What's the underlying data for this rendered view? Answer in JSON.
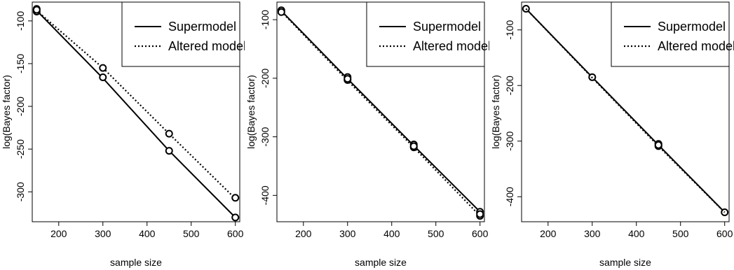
{
  "chart_data": [
    {
      "type": "line",
      "xlabel": "sample size",
      "ylabel": "log(Bayes factor)",
      "xlim": [
        140,
        610
      ],
      "ylim": [
        -335,
        -78
      ],
      "xticks": [
        200,
        300,
        400,
        500,
        600
      ],
      "yticks": [
        -100,
        -150,
        -200,
        -250,
        -300
      ],
      "grid": false,
      "legend_position": "top-right",
      "series": [
        {
          "name": "Supermodel",
          "line_style": "solid",
          "x": [
            150,
            300,
            450,
            600
          ],
          "values": [
            -88,
            -167,
            -252,
            -330
          ],
          "points": [
            [
              150,
              -86
            ],
            [
              150,
              -89
            ],
            [
              300,
              -166
            ],
            [
              450,
              -252
            ],
            [
              600,
              -330
            ]
          ]
        },
        {
          "name": "Altered model",
          "line_style": "dotted",
          "x": [
            150,
            300,
            450,
            600
          ],
          "values": [
            -88,
            -155,
            -232,
            -308
          ],
          "points": [
            [
              150,
              -87
            ],
            [
              300,
              -155
            ],
            [
              450,
              -232
            ],
            [
              600,
              -307
            ]
          ]
        }
      ]
    },
    {
      "type": "line",
      "xlabel": "sample size",
      "ylabel": "log(Bayes factor)",
      "xlim": [
        140,
        610
      ],
      "ylim": [
        -445,
        -70
      ],
      "xticks": [
        200,
        300,
        400,
        500,
        600
      ],
      "yticks": [
        -100,
        -200,
        -300,
        -400
      ],
      "grid": false,
      "legend_position": "top-right",
      "series": [
        {
          "name": "Supermodel",
          "line_style": "solid",
          "x": [
            150,
            300,
            450,
            600
          ],
          "values": [
            -85,
            -201,
            -315,
            -428
          ],
          "points": [
            [
              150,
              -84
            ],
            [
              300,
              -198
            ],
            [
              300,
              -203
            ],
            [
              450,
              -313
            ],
            [
              450,
              -318
            ],
            [
              600,
              -428
            ],
            [
              600,
              -435
            ]
          ]
        },
        {
          "name": "Altered model",
          "line_style": "dotted",
          "x": [
            150,
            300,
            450,
            600
          ],
          "values": [
            -86,
            -204,
            -318,
            -435
          ],
          "points": [
            [
              150,
              -87
            ],
            [
              300,
              -201
            ],
            [
              450,
              -316
            ],
            [
              600,
              -432
            ]
          ]
        }
      ]
    },
    {
      "type": "line",
      "xlabel": "sample size",
      "ylabel": "log(Bayes factor)",
      "xlim": [
        140,
        610
      ],
      "ylim": [
        -445,
        -50
      ],
      "xticks": [
        200,
        300,
        400,
        500,
        600
      ],
      "yticks": [
        -100,
        -200,
        -300,
        -400
      ],
      "grid": false,
      "legend_position": "top-right",
      "series": [
        {
          "name": "Supermodel",
          "line_style": "solid",
          "x": [
            150,
            300,
            450,
            600
          ],
          "values": [
            -62,
            -185,
            -307,
            -428
          ],
          "points": [
            [
              150,
              -62
            ],
            [
              300,
              -185
            ],
            [
              450,
              -305
            ],
            [
              450,
              -309
            ],
            [
              600,
              -428
            ]
          ]
        },
        {
          "name": "Altered model",
          "line_style": "dotted",
          "x": [
            150,
            300,
            450,
            600
          ],
          "values": [
            -62,
            -186,
            -309,
            -428
          ],
          "points": [
            [
              450,
              -307
            ]
          ]
        }
      ]
    }
  ]
}
